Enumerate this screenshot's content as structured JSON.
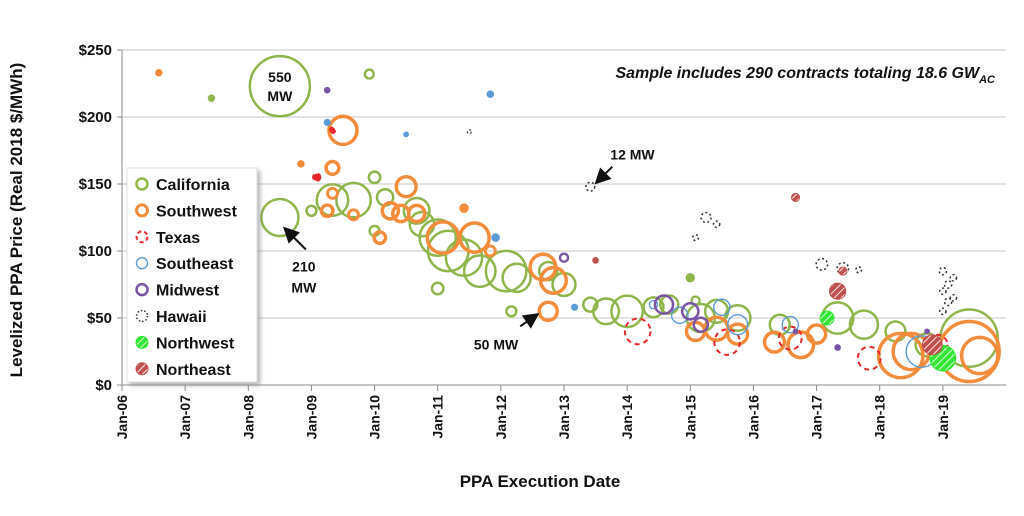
{
  "chart_data": {
    "type": "scatter",
    "subtype": "bubble",
    "xlabel": "PPA Execution Date",
    "ylabel": "Levelized PPA Price (Real 2018 $/MWh)",
    "x_ticks": [
      "Jan-06",
      "Jan-07",
      "Jan-08",
      "Jan-09",
      "Jan-10",
      "Jan-11",
      "Jan-12",
      "Jan-13",
      "Jan-14",
      "Jan-15",
      "Jan-16",
      "Jan-17",
      "Jan-18",
      "Jan-19"
    ],
    "y_ticks": [
      "$0",
      "$50",
      "$100",
      "$150",
      "$200",
      "$250"
    ],
    "y_tick_values": [
      0,
      50,
      100,
      150,
      200,
      250
    ],
    "xlim": [
      "2006-01",
      "2020-01"
    ],
    "ylim": [
      0,
      250
    ],
    "grid": "horizontal",
    "legend_placement": "left",
    "bubble_size": "contract capacity (MW)",
    "note": {
      "text": "Sample includes 290 contracts totaling 18.6 GW",
      "sub": "AC"
    },
    "annotations": [
      {
        "text": [
          "550",
          "MW"
        ],
        "date": "2008-07",
        "price": 223,
        "mw": 550
      },
      {
        "text": [
          "210",
          "MW"
        ],
        "date": "2008-07",
        "price": 125,
        "mw": 210
      },
      {
        "text": [
          "12 MW"
        ],
        "date": "2013-06",
        "price": 148,
        "mw": 12
      },
      {
        "text": [
          "50 MW"
        ],
        "date": "2012-10",
        "price": 55,
        "mw": 50
      }
    ],
    "series": [
      {
        "name": "California",
        "color": "#8db54a",
        "style": "open",
        "points": [
          [
            "2008-07",
            223,
            550
          ],
          [
            "2008-07",
            125,
            210
          ],
          [
            "2007-06",
            214,
            5
          ],
          [
            "2009-12",
            232,
            12
          ],
          [
            "2009-05",
            138,
            150
          ],
          [
            "2009-09",
            138,
            180
          ],
          [
            "2010-03",
            140,
            40
          ],
          [
            "2010-01",
            155,
            20
          ],
          [
            "2010-09",
            130,
            100
          ],
          [
            "2010-10",
            120,
            90
          ],
          [
            "2011-01",
            110,
            200
          ],
          [
            "2011-03",
            100,
            250
          ],
          [
            "2011-06",
            95,
            200
          ],
          [
            "2011-09",
            85,
            150
          ],
          [
            "2012-02",
            85,
            250
          ],
          [
            "2012-04",
            80,
            120
          ],
          [
            "2012-10",
            85,
            50
          ],
          [
            "2013-01",
            75,
            80
          ],
          [
            "2013-06",
            60,
            30
          ],
          [
            "2013-09",
            55,
            100
          ],
          [
            "2014-01",
            55,
            150
          ],
          [
            "2014-06",
            58,
            60
          ],
          [
            "2014-09",
            60,
            50
          ],
          [
            "2015-03",
            50,
            120
          ],
          [
            "2015-06",
            55,
            80
          ],
          [
            "2015-10",
            50,
            100
          ],
          [
            "2016-06",
            45,
            60
          ],
          [
            "2017-05",
            50,
            150
          ],
          [
            "2017-10",
            45,
            120
          ],
          [
            "2018-04",
            40,
            60
          ],
          [
            "2018-10",
            30,
            80
          ],
          [
            "2019-06",
            35,
            500
          ],
          [
            "2011-01",
            72,
            20
          ],
          [
            "2012-03",
            55,
            15
          ],
          [
            "2010-01",
            115,
            15
          ],
          [
            "2009-01",
            130,
            15
          ],
          [
            "2015-01",
            80,
            8
          ],
          [
            "2015-02",
            63,
            10
          ]
        ]
      },
      {
        "name": "Southwest",
        "color": "#f28c3a",
        "style": "thick",
        "points": [
          [
            "2006-08",
            233,
            5
          ],
          [
            "2009-07",
            190,
            120
          ],
          [
            "2008-11",
            165,
            5
          ],
          [
            "2009-05",
            162,
            25
          ],
          [
            "2009-05",
            143,
            15
          ],
          [
            "2009-04",
            130,
            20
          ],
          [
            "2009-09",
            127,
            15
          ],
          [
            "2010-07",
            148,
            60
          ],
          [
            "2010-04",
            130,
            40
          ],
          [
            "2010-06",
            128,
            40
          ],
          [
            "2010-02",
            110,
            20
          ],
          [
            "2010-09",
            128,
            40
          ],
          [
            "2011-02",
            110,
            150
          ],
          [
            "2011-08",
            110,
            130
          ],
          [
            "2011-06",
            132,
            8
          ],
          [
            "2011-11",
            100,
            15
          ],
          [
            "2012-09",
            88,
            100
          ],
          [
            "2012-11",
            78,
            100
          ],
          [
            "2012-10",
            55,
            50
          ],
          [
            "2015-02",
            40,
            50
          ],
          [
            "2015-06",
            42,
            80
          ],
          [
            "2015-10",
            38,
            60
          ],
          [
            "2016-05",
            32,
            60
          ],
          [
            "2016-10",
            30,
            100
          ],
          [
            "2017-01",
            38,
            50
          ],
          [
            "2018-05",
            22,
            300
          ],
          [
            "2018-07",
            25,
            200
          ],
          [
            "2019-06",
            25,
            550
          ],
          [
            "2019-08",
            22,
            200
          ]
        ]
      },
      {
        "name": "Texas",
        "color": "#e8282b",
        "style": "dashed",
        "points": [
          [
            "2009-05",
            190,
            5
          ],
          [
            "2009-02",
            155,
            8
          ],
          [
            "2014-03",
            40,
            100
          ],
          [
            "2015-08",
            32,
            100
          ],
          [
            "2016-08",
            35,
            80
          ],
          [
            "2017-11",
            20,
            80
          ],
          [
            "2018-12",
            30,
            60
          ]
        ]
      },
      {
        "name": "Southeast",
        "color": "#5b9bd5",
        "style": "thin",
        "points": [
          [
            "2009-04",
            196,
            5
          ],
          [
            "2010-07",
            187,
            3
          ],
          [
            "2011-11",
            217,
            6
          ],
          [
            "2011-12",
            110,
            8
          ],
          [
            "2014-06",
            60,
            10
          ],
          [
            "2014-11",
            52,
            40
          ],
          [
            "2015-07",
            58,
            40
          ],
          [
            "2015-10",
            45,
            60
          ],
          [
            "2016-08",
            45,
            40
          ],
          [
            "2017-03",
            50,
            20
          ],
          [
            "2018-09",
            25,
            150
          ],
          [
            "2013-03",
            58,
            5
          ]
        ]
      },
      {
        "name": "Midwest",
        "color": "#7a54a3",
        "style": "open",
        "points": [
          [
            "2009-04",
            220,
            4
          ],
          [
            "2013-01",
            95,
            10
          ],
          [
            "2014-08",
            60,
            50
          ],
          [
            "2015-01",
            55,
            40
          ],
          [
            "2015-03",
            45,
            30
          ],
          [
            "2017-05",
            28,
            4
          ],
          [
            "2018-10",
            40,
            3
          ],
          [
            "2016-09",
            40,
            3
          ]
        ]
      },
      {
        "name": "Hawaii",
        "color": "#333333",
        "style": "dotted",
        "points": [
          [
            "2011-07",
            189,
            2
          ],
          [
            "2013-06",
            148,
            12
          ],
          [
            "2015-02",
            110,
            5
          ],
          [
            "2015-04",
            125,
            15
          ],
          [
            "2015-06",
            120,
            6
          ],
          [
            "2017-02",
            90,
            20
          ],
          [
            "2017-06",
            87,
            20
          ],
          [
            "2017-09",
            86,
            5
          ],
          [
            "2019-01",
            85,
            8
          ],
          [
            "2019-02",
            75,
            8
          ],
          [
            "2019-01",
            70,
            6
          ],
          [
            "2019-02",
            62,
            8
          ],
          [
            "2019-01",
            55,
            6
          ],
          [
            "2019-03",
            65,
            6
          ],
          [
            "2019-03",
            80,
            6
          ]
        ]
      },
      {
        "name": "Northwest",
        "color": "#33e633",
        "style": "hatched",
        "points": [
          [
            "2017-03",
            50,
            30
          ],
          [
            "2019-01",
            20,
            100
          ]
        ]
      },
      {
        "name": "Northeast",
        "color": "#c0504d",
        "style": "hatched",
        "points": [
          [
            "2013-07",
            93,
            5
          ],
          [
            "2016-09",
            140,
            10
          ],
          [
            "2017-06",
            85,
            10
          ],
          [
            "2017-05",
            70,
            40
          ],
          [
            "2018-11",
            30,
            60
          ]
        ]
      }
    ]
  }
}
